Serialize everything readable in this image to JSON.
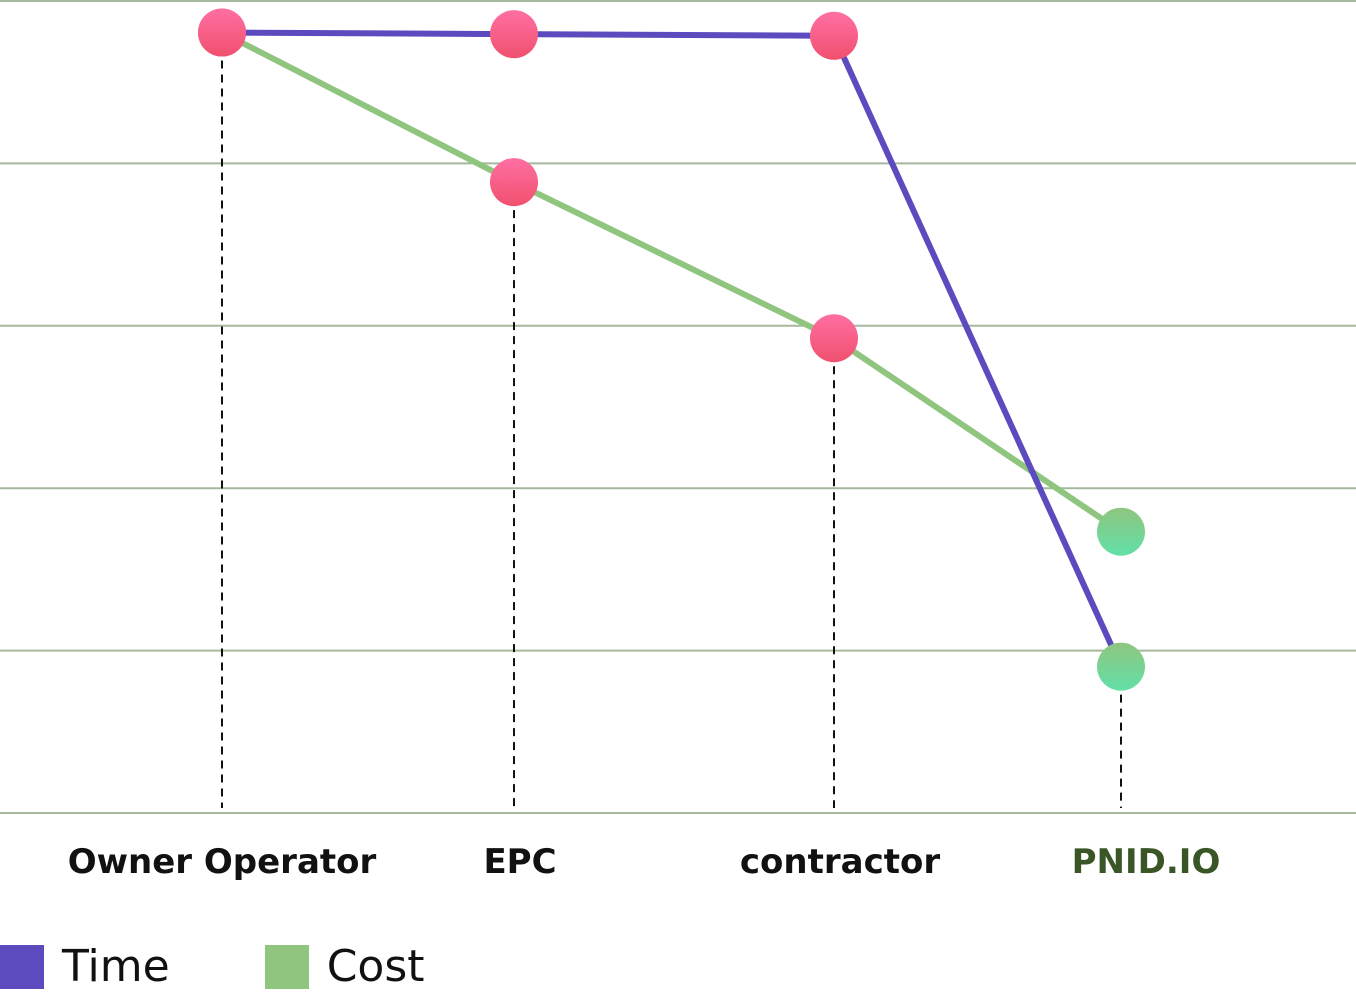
{
  "colors": {
    "grid": "#a6b89d",
    "time": "#5b4bbf",
    "cost": "#8fc57f",
    "marker_pink_top": "#ff6fa3",
    "marker_pink_bottom": "#f0506e",
    "marker_green_top": "#8fc57f",
    "marker_green_bottom": "#62e0a8",
    "label_default": "#111111",
    "label_highlight": "#3a5526"
  },
  "chart_data": {
    "type": "line",
    "categories": [
      "Owner Operator",
      "EPC",
      "contractor",
      "PNID.IO"
    ],
    "highlight_category": "PNID.IO",
    "series": [
      {
        "name": "Time",
        "color_key": "time",
        "values": [
          96,
          95.8,
          95.6,
          18
        ]
      },
      {
        "name": "Cost",
        "color_key": "cost",
        "values": [
          96,
          77.6,
          58.4,
          34.6
        ]
      }
    ],
    "ylim": [
      0,
      100
    ],
    "gridlines": 6,
    "grid": true,
    "legend_position": "bottom-left",
    "title": "",
    "xlabel": "",
    "ylabel": ""
  },
  "legend": {
    "items": [
      {
        "label": "Time",
        "color_key": "time"
      },
      {
        "label": "Cost",
        "color_key": "cost"
      }
    ]
  }
}
